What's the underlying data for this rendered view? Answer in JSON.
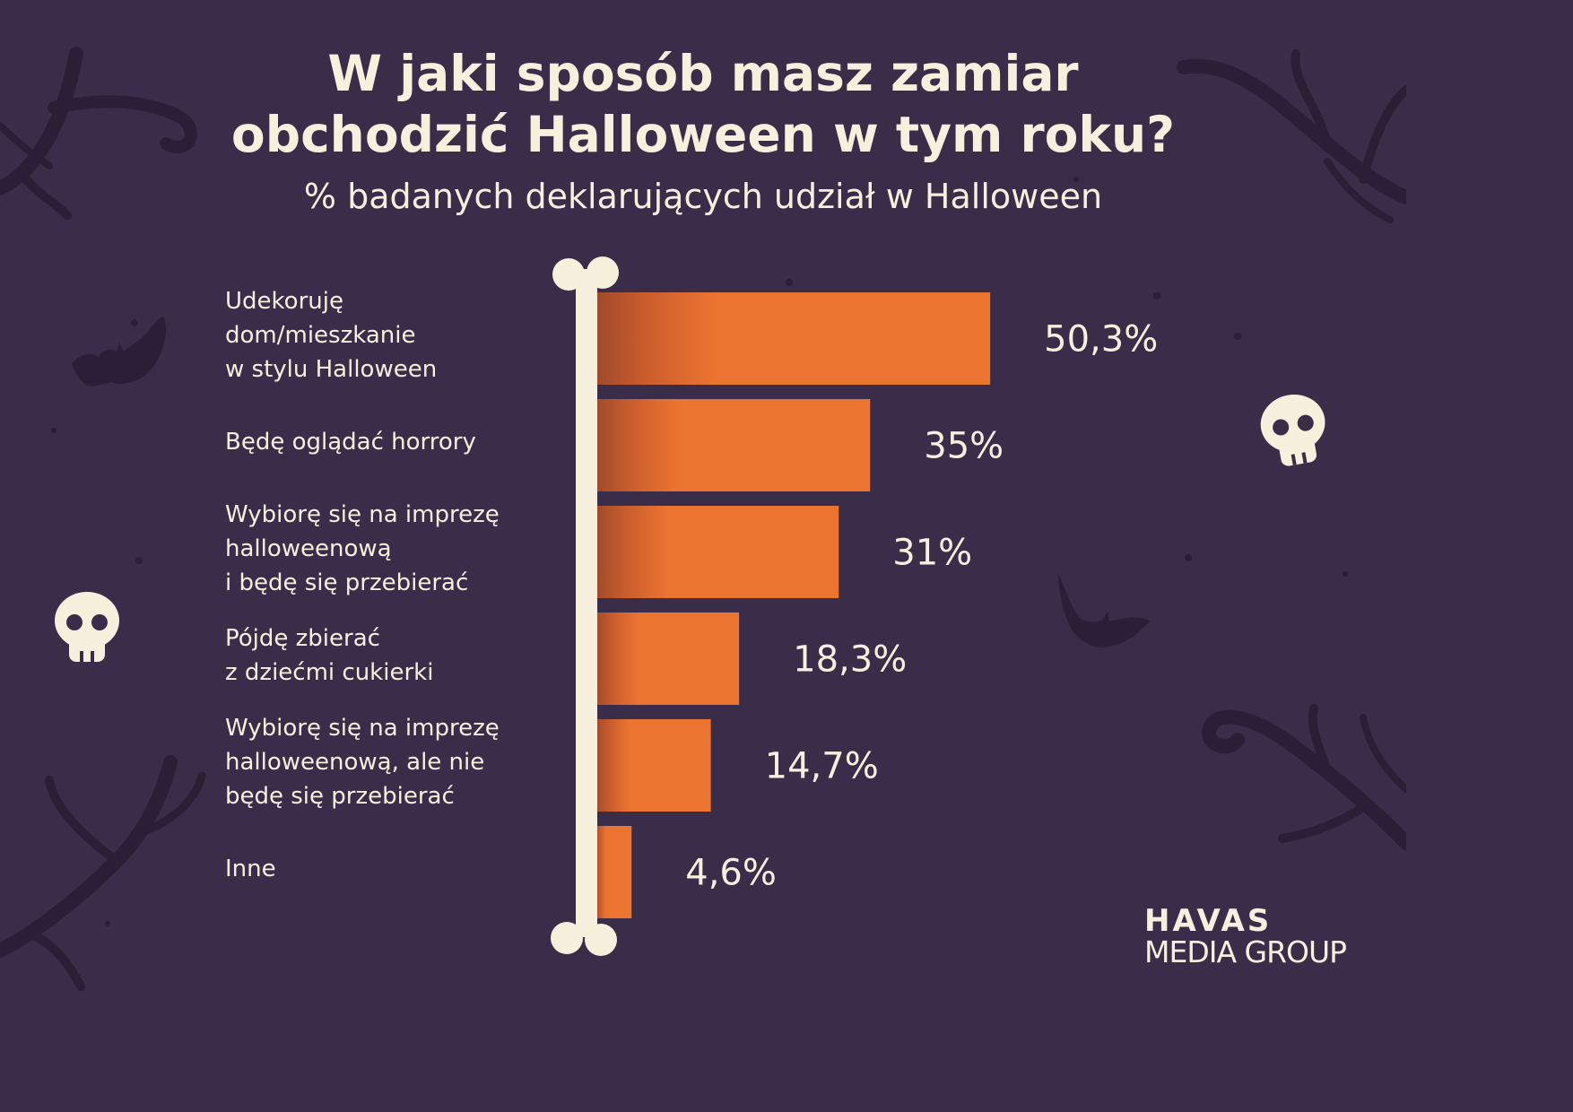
{
  "header": {
    "title_line1": "W jaki sposób masz zamiar",
    "title_line2": "obchodzić Halloween w tym roku?",
    "subtitle": "% badanych deklarujących udział w Halloween"
  },
  "colors": {
    "background": "#3a2d4a",
    "bar": "#ec7431",
    "bar_shade": "#b8532a",
    "cream": "#f6f0dc",
    "decor": "#2a1f36"
  },
  "chart_data": {
    "type": "bar",
    "orientation": "horizontal",
    "categories": [
      "Udekoruję\ndom/mieszkanie\nw stylu Halloween",
      "Będę oglądać horrory",
      "Wybiorę się na imprezę\nhalloweenową\ni będę się przebierać",
      "Pójdę zbierać\nz dziećmi cukierki",
      "Wybiorę się na imprezę\nhalloweenową, ale nie\nbędę się przebierać",
      "Inne"
    ],
    "values": [
      50.3,
      35,
      31,
      18.3,
      14.7,
      4.6
    ],
    "value_labels": [
      "50,3%",
      "35%",
      "31%",
      "18,3%",
      "14,7%",
      "4,6%"
    ],
    "unit": "%",
    "grid": false,
    "legend": "none"
  },
  "logo": {
    "line1": "HAVAS",
    "line2": "MEDIA GROUP"
  },
  "icons": [
    "tree-branch-icon",
    "bat-icon",
    "skull-icon",
    "bone-axis-icon"
  ]
}
